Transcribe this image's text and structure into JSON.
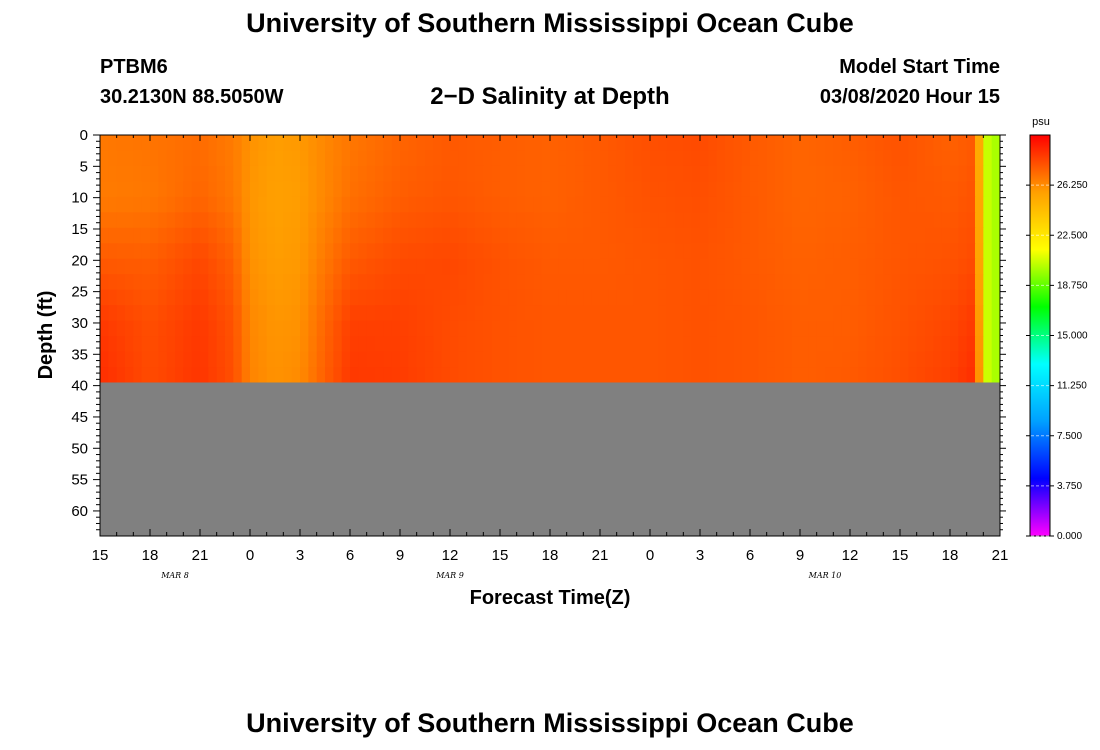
{
  "header": {
    "title": "University of Southern Mississippi Ocean Cube",
    "station": "PTBM6",
    "coordinates": "30.2130N 88.5050W",
    "subtitle": "2−D Salinity at Depth",
    "model_start_label": "Model Start Time",
    "model_start_value": "03/08/2020 Hour 15"
  },
  "footer": {
    "title": "University of Southern Mississippi Ocean Cube"
  },
  "colors": {
    "land_gray": "#808080",
    "colorbar_stops": [
      "#ff00ff",
      "#0000ff",
      "#00a0ff",
      "#00ffff",
      "#00ff00",
      "#ffff00",
      "#ffa000",
      "#ff0000"
    ]
  },
  "chart_data": {
    "type": "heatmap",
    "variable": "Salinity",
    "units": "psu",
    "xlabel": "Forecast Time(Z)",
    "ylabel": "Depth (ft)",
    "x_hours_since_start": [
      0,
      3,
      6,
      9,
      12,
      15,
      18,
      21,
      24,
      27,
      30,
      33,
      36,
      39,
      42,
      45,
      48,
      51,
      54
    ],
    "xtick_labels": [
      "15",
      "18",
      "21",
      "0",
      "3",
      "6",
      "9",
      "12",
      "15",
      "18",
      "21",
      "0",
      "3",
      "6",
      "9",
      "12",
      "15",
      "18",
      "21"
    ],
    "date_labels": [
      {
        "label": "MAR  8",
        "hour": 4.5
      },
      {
        "label": "MAR  9",
        "hour": 21
      },
      {
        "label": "MAR  10",
        "hour": 43.5
      }
    ],
    "ytick_values": [
      0,
      5,
      10,
      15,
      20,
      25,
      30,
      35,
      40,
      45,
      50,
      55,
      60
    ],
    "ytick_labels": [
      "0",
      "5",
      "10",
      "15",
      "20",
      "25",
      "30",
      "35",
      "40",
      "45",
      "50",
      "55",
      "60"
    ],
    "ylim": [
      0,
      64
    ],
    "xlim": [
      0,
      54
    ],
    "water_bottom_depth_ft": 39.5,
    "colorbar": {
      "label": "psu",
      "range": [
        0,
        30
      ],
      "tick_values": [
        0,
        3.75,
        7.5,
        11.25,
        15,
        18.75,
        22.5,
        26.25
      ],
      "tick_labels": [
        "0.000",
        "3.750",
        "7.500",
        "11.250",
        "15.000",
        "18.750",
        "22.500",
        "26.250"
      ]
    },
    "salinity_time_hours": [
      0,
      3,
      6,
      8,
      9,
      10.5,
      12,
      13.5,
      15,
      18,
      21,
      24,
      27,
      30,
      33,
      36,
      39,
      42,
      45,
      48,
      51,
      52.5,
      53.3,
      53.8,
      54
    ],
    "salinity_depths_ft": [
      0,
      10,
      20,
      30,
      39.5
    ],
    "salinity_psu": [
      [
        26.8,
        26.9,
        27.1,
        26.7,
        26.1,
        25.8,
        25.9,
        26.4,
        26.8,
        27.3,
        27.6,
        27.5,
        27.4,
        27.6,
        27.9,
        28.0,
        27.6,
        27.3,
        27.5,
        27.8,
        27.4,
        27.6,
        20.0,
        20.0,
        0.0
      ],
      [
        26.7,
        26.8,
        27.3,
        26.8,
        26.0,
        25.7,
        25.8,
        26.4,
        27.0,
        27.5,
        27.7,
        27.5,
        27.4,
        27.6,
        27.8,
        27.9,
        27.6,
        27.3,
        27.4,
        27.7,
        27.6,
        27.8,
        20.0,
        20.0,
        0.0
      ],
      [
        27.6,
        27.5,
        28.1,
        27.4,
        26.1,
        25.8,
        25.9,
        26.8,
        27.6,
        28.0,
        28.1,
        27.8,
        27.6,
        27.6,
        27.7,
        27.8,
        27.6,
        27.4,
        27.5,
        27.7,
        27.8,
        28.0,
        20.0,
        20.0,
        0.0
      ],
      [
        28.5,
        27.9,
        28.5,
        27.8,
        26.4,
        26.0,
        26.1,
        27.3,
        28.3,
        28.3,
        28.0,
        27.8,
        27.7,
        27.7,
        27.7,
        27.8,
        27.7,
        27.5,
        27.5,
        27.8,
        28.1,
        28.5,
        20.0,
        20.0,
        0.0
      ],
      [
        28.8,
        28.0,
        28.6,
        27.9,
        26.5,
        26.1,
        26.3,
        27.5,
        28.5,
        28.4,
        28.0,
        27.8,
        27.7,
        27.7,
        27.7,
        27.8,
        27.7,
        27.5,
        27.6,
        27.9,
        28.3,
        28.8,
        20.0,
        20.0,
        0.0
      ]
    ]
  }
}
